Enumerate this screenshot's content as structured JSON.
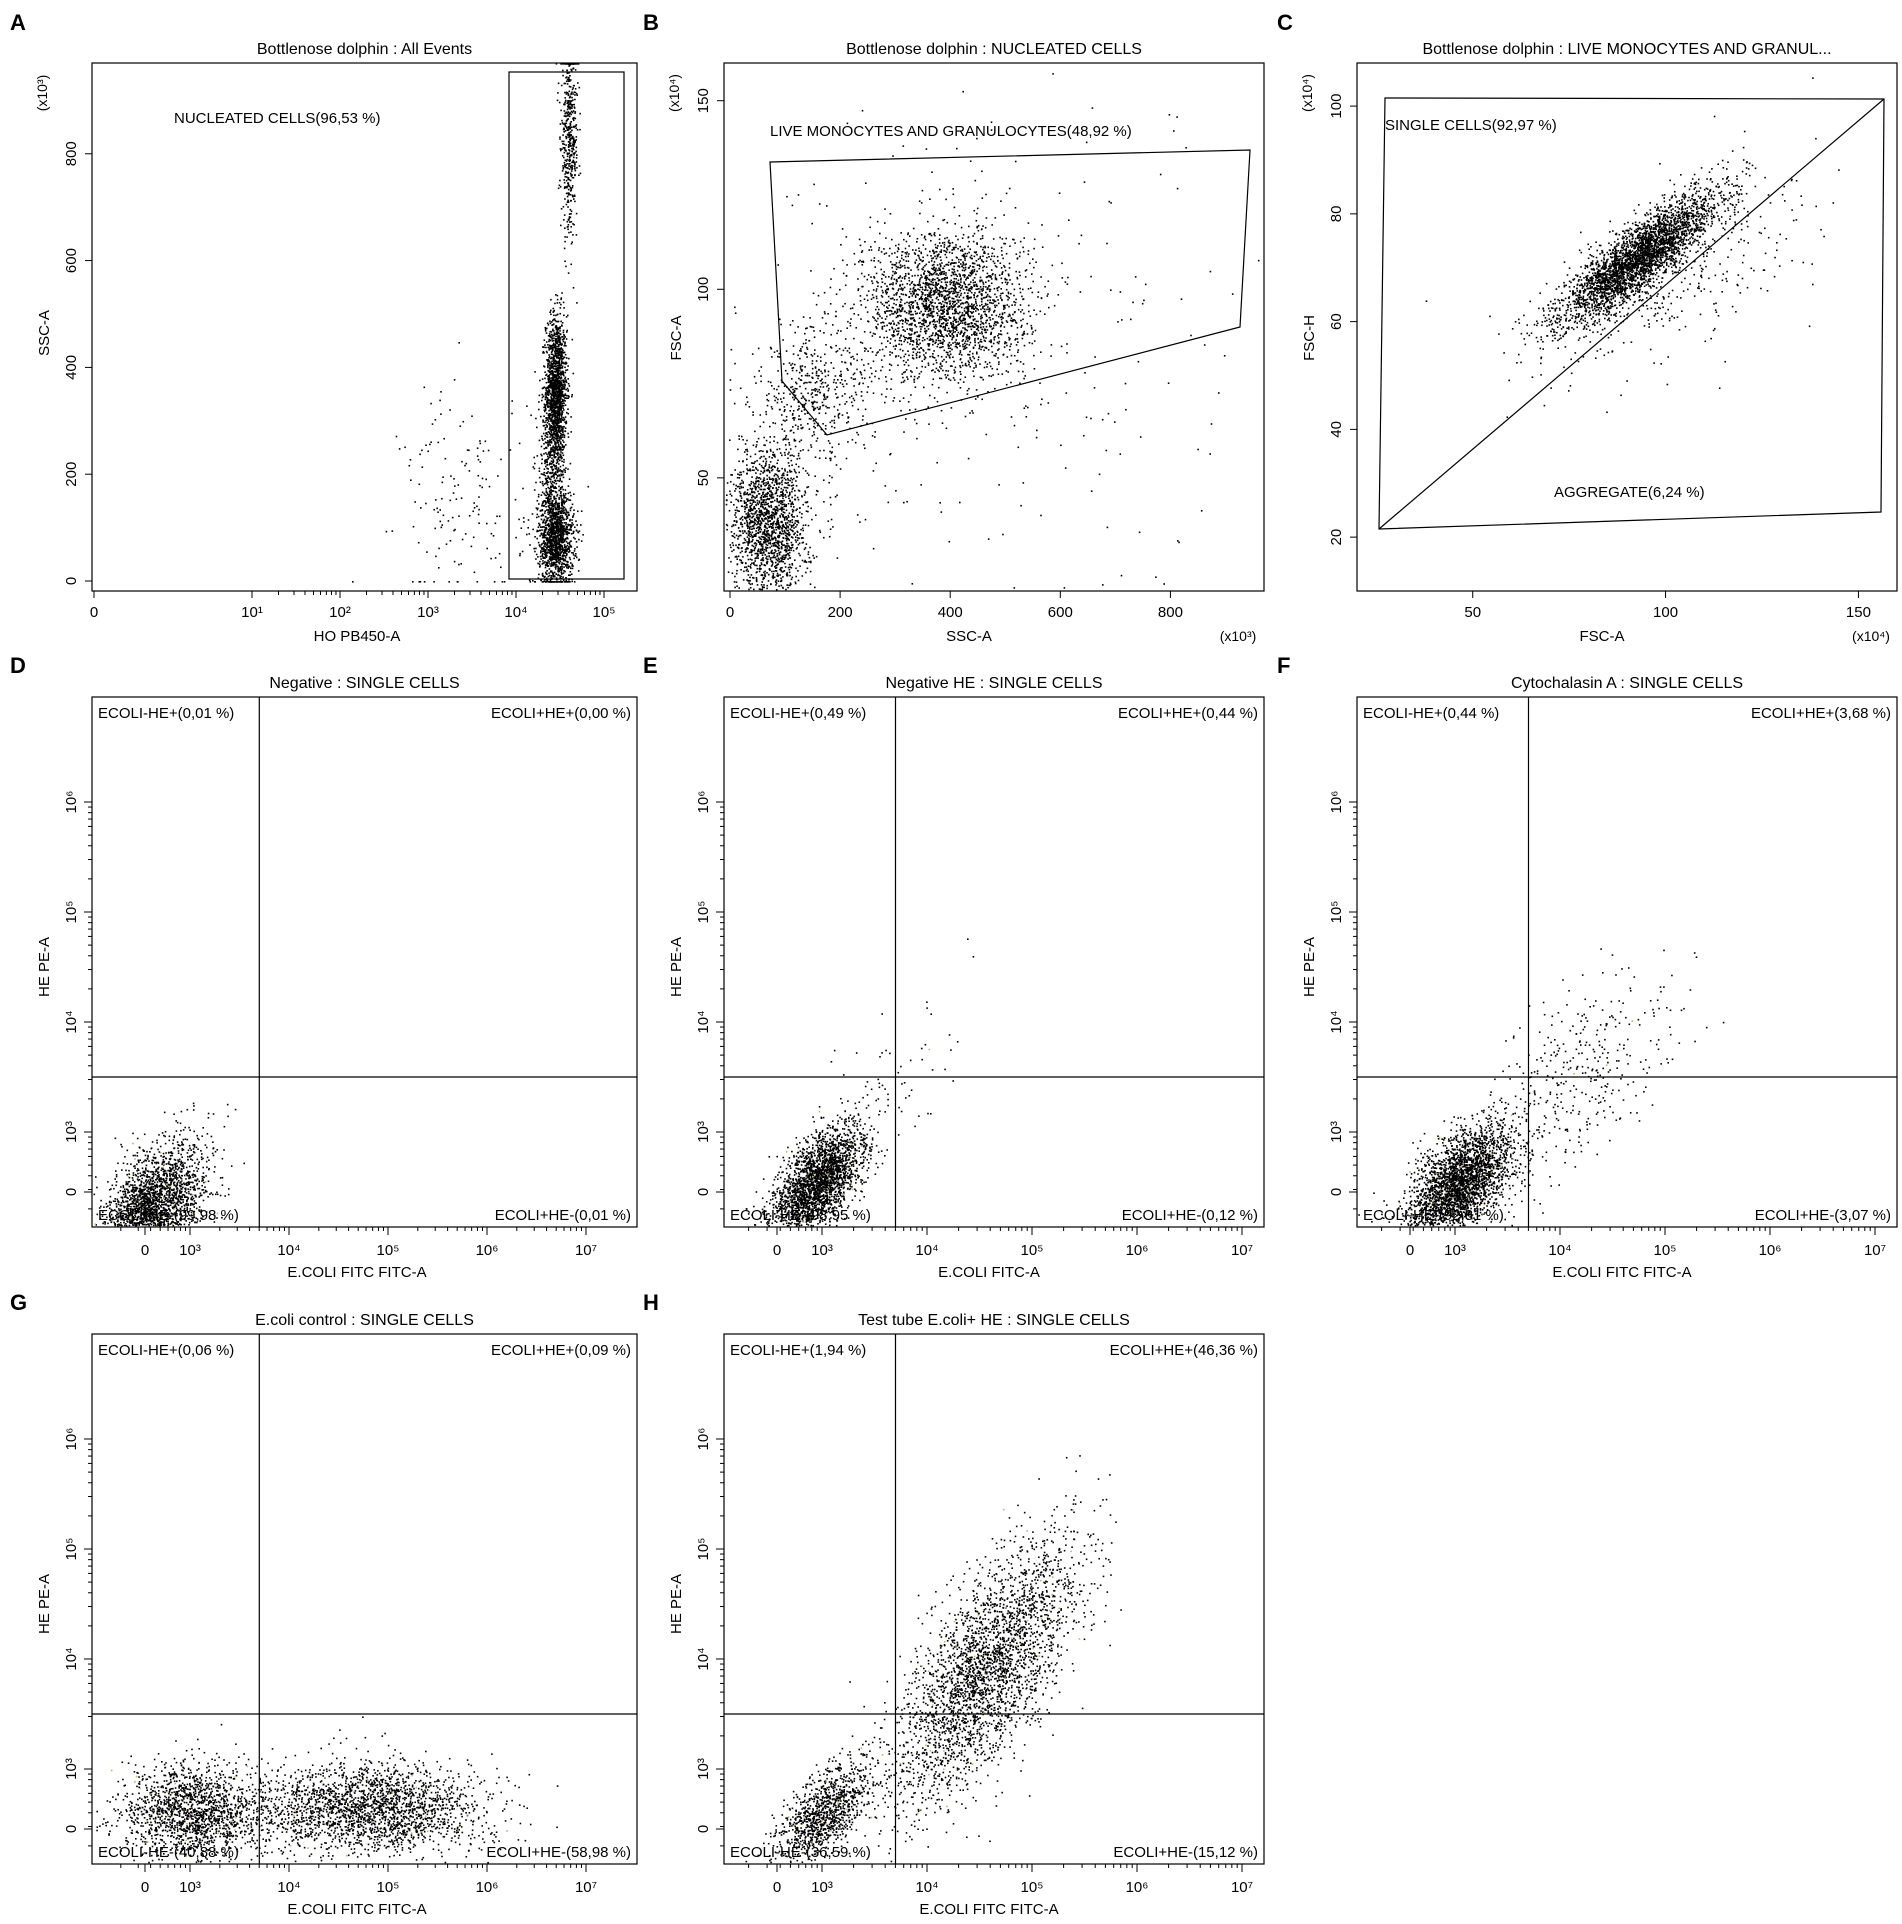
{
  "chart_data": [
    {
      "id": "A",
      "type": "scatter",
      "letter": "A",
      "title": "Bottlenose dolphin : All Events",
      "xlabel": "HO PB450-A",
      "ylabel": "SSC-A",
      "yscale_label": "(x10³)",
      "x_ticks": [
        "0",
        "10¹",
        "10²",
        "10³",
        "10⁴",
        "10⁵"
      ],
      "y_ticks": [
        "0",
        "200",
        "400",
        "600",
        "800"
      ],
      "y_tick_values": [
        0,
        200,
        400,
        600,
        800
      ],
      "ylim": [
        0,
        970
      ],
      "gates": [
        {
          "name": "NUCLEATED CELLS",
          "label": "NUCLEATED CELLS(96,53 %)",
          "percent": 96.53
        }
      ],
      "clusters": [
        {
          "x_log": 4.45,
          "y": 360,
          "sx_log": 0.06,
          "sy": 70,
          "n": 1400
        },
        {
          "x_log": 4.45,
          "y": 80,
          "sx_log": 0.1,
          "sy": 45,
          "n": 1200
        },
        {
          "x_log": 4.6,
          "y": 830,
          "sx_log": 0.05,
          "sy": 90,
          "n": 500
        },
        {
          "x_log": 4.4,
          "y": 200,
          "sx_log": 0.08,
          "sy": 90,
          "n": 500
        },
        {
          "x_log": 3.4,
          "y": 150,
          "sx_log": 0.35,
          "sy": 110,
          "n": 150
        }
      ]
    },
    {
      "id": "B",
      "type": "scatter",
      "letter": "B",
      "title": "Bottlenose dolphin : NUCLEATED CELLS",
      "xlabel": "SSC-A",
      "ylabel": "FSC-A",
      "xscale_label": "(x10³)",
      "yscale_label": "(x10⁴)",
      "x_ticks": [
        "0",
        "200",
        "400",
        "600",
        "800"
      ],
      "x_tick_values": [
        0,
        200,
        400,
        600,
        800
      ],
      "y_ticks": [
        "50",
        "100",
        "150"
      ],
      "y_tick_values": [
        50,
        100,
        150
      ],
      "xlim": [
        0,
        970
      ],
      "ylim": [
        20,
        160
      ],
      "gates": [
        {
          "name": "LIVE MONOCYTES AND GRANULOCYTES",
          "label": "LIVE MONOCYTES AND GRANULOCYTES(48,92 %)",
          "percent": 48.92
        }
      ],
      "clusters": [
        {
          "x": 390,
          "y": 96,
          "sx": 75,
          "sy": 10,
          "n": 2400
        },
        {
          "x": 70,
          "y": 38,
          "sx": 35,
          "sy": 10,
          "n": 1700
        },
        {
          "x": 150,
          "y": 72,
          "sx": 55,
          "sy": 9,
          "n": 500
        },
        {
          "x": 500,
          "y": 80,
          "sx": 260,
          "sy": 35,
          "n": 250
        }
      ]
    },
    {
      "id": "C",
      "type": "scatter",
      "letter": "C",
      "title": "Bottlenose dolphin : LIVE MONOCYTES AND GRANUL...",
      "xlabel": "FSC-A",
      "ylabel": "FSC-H",
      "xscale_label": "(x10⁴)",
      "yscale_label": "(x10⁴)",
      "x_ticks": [
        "50",
        "100",
        "150"
      ],
      "x_tick_values": [
        50,
        100,
        150
      ],
      "y_ticks": [
        "20",
        "40",
        "60",
        "80",
        "100"
      ],
      "y_tick_values": [
        20,
        40,
        60,
        80,
        100
      ],
      "xlim": [
        20,
        160
      ],
      "ylim": [
        10,
        108
      ],
      "gates": [
        {
          "name": "SINGLE CELLS",
          "label": "SINGLE CELLS(92,97 %)",
          "percent": 92.97
        },
        {
          "name": "AGGREGATE",
          "label": "AGGREGATE(6,24 %)",
          "percent": 6.24
        }
      ],
      "clusters": [
        {
          "x": 93,
          "y": 72,
          "sx": 10,
          "sy": 6,
          "n": 3200,
          "corr": 0.85
        },
        {
          "x": 100,
          "y": 68,
          "sx": 18,
          "sy": 10,
          "n": 400,
          "corr": 0.6
        }
      ]
    },
    {
      "id": "D",
      "type": "scatter",
      "letter": "D",
      "title": "Negative : SINGLE CELLS",
      "xlabel": "E.COLI FITC FITC-A",
      "ylabel": "HE PE-A",
      "x_ticks": [
        "0",
        "10³",
        "10⁴",
        "10⁵",
        "10⁶",
        "10⁷"
      ],
      "y_ticks": [
        "0",
        "10³",
        "10⁴",
        "10⁵",
        "10⁶"
      ],
      "quadrants": [
        {
          "label": "ECOLI-HE+(0,01 %)",
          "percent": 0.01
        },
        {
          "label": "ECOLI+HE+(0,00 %)",
          "percent": 0.0
        },
        {
          "label": "ECOLI-HE-(99,98 %)",
          "percent": 99.98
        },
        {
          "label": "ECOLI+HE-(0,01 %)",
          "percent": 0.01
        }
      ],
      "clusters": [
        {
          "x": 2.6,
          "y": 2.3,
          "sx": 0.28,
          "sy": 0.3,
          "n": 2600,
          "corr": 0.5
        }
      ]
    },
    {
      "id": "E",
      "type": "scatter",
      "letter": "E",
      "title": "Negative HE : SINGLE CELLS",
      "xlabel": "E.COLI  FITC-A",
      "ylabel": "HE PE-A",
      "x_ticks": [
        "0",
        "10³",
        "10⁴",
        "10⁵",
        "10⁶",
        "10⁷"
      ],
      "y_ticks": [
        "0",
        "10³",
        "10⁴",
        "10⁵",
        "10⁶"
      ],
      "quadrants": [
        {
          "label": "ECOLI-HE+(0,49 %)",
          "percent": 0.49
        },
        {
          "label": "ECOLI+HE+(0,44 %)",
          "percent": 0.44
        },
        {
          "label": "ECOLI-HE-(98,95 %)",
          "percent": 98.95
        },
        {
          "label": "ECOLI+HE-(0,12 %)",
          "percent": 0.12
        }
      ],
      "clusters": [
        {
          "x": 2.95,
          "y": 2.55,
          "sx": 0.22,
          "sy": 0.25,
          "n": 2500,
          "corr": 0.6
        },
        {
          "x": 3.6,
          "y": 3.3,
          "sx": 0.35,
          "sy": 0.45,
          "n": 70,
          "corr": 0.6
        }
      ]
    },
    {
      "id": "F",
      "type": "scatter",
      "letter": "F",
      "title": "Cytochalasin A : SINGLE CELLS",
      "xlabel": "E.COLI FITC FITC-A",
      "ylabel": "HE PE-A",
      "x_ticks": [
        "0",
        "10³",
        "10⁴",
        "10⁵",
        "10⁶",
        "10⁷"
      ],
      "y_ticks": [
        "0",
        "10³",
        "10⁴",
        "10⁵",
        "10⁶"
      ],
      "quadrants": [
        {
          "label": "ECOLI-HE+(0,44 %)",
          "percent": 0.44
        },
        {
          "label": "ECOLI+HE+(3,68 %)",
          "percent": 3.68
        },
        {
          "label": "ECOLI-HE-(92,81 %)",
          "percent": 92.81
        },
        {
          "label": "ECOLI+HE-(3,07 %)",
          "percent": 3.07
        }
      ],
      "clusters": [
        {
          "x": 3.05,
          "y": 2.55,
          "sx": 0.25,
          "sy": 0.25,
          "n": 2800,
          "corr": 0.55
        },
        {
          "x": 4.2,
          "y": 3.5,
          "sx": 0.45,
          "sy": 0.5,
          "n": 380,
          "corr": 0.5
        }
      ]
    },
    {
      "id": "G",
      "type": "scatter",
      "letter": "G",
      "title": "E.coli control : SINGLE CELLS",
      "xlabel": "E.COLI FITC FITC-A",
      "ylabel": "HE PE-A",
      "x_ticks": [
        "0",
        "10³",
        "10⁴",
        "10⁵",
        "10⁶",
        "10⁷"
      ],
      "y_ticks": [
        "0",
        "10³",
        "10⁴",
        "10⁵",
        "10⁶"
      ],
      "quadrants": [
        {
          "label": "ECOLI-HE+(0,06 %)",
          "percent": 0.06
        },
        {
          "label": "ECOLI+HE+(0,09 %)",
          "percent": 0.09
        },
        {
          "label": "ECOLI-HE-(40,88 %)",
          "percent": 40.88
        },
        {
          "label": "ECOLI+HE-(58,98 %)",
          "percent": 58.98
        }
      ],
      "clusters": [
        {
          "x": 3.0,
          "y": 2.6,
          "sx": 0.35,
          "sy": 0.22,
          "n": 1600,
          "corr": 0.0
        },
        {
          "x": 4.75,
          "y": 2.65,
          "sx": 0.6,
          "sy": 0.2,
          "n": 2300,
          "corr": 0.0
        }
      ]
    },
    {
      "id": "H",
      "type": "scatter",
      "letter": "H",
      "title": "Test tube E.coli+ HE : SINGLE CELLS",
      "xlabel": "E.COLI FITC FITC-A",
      "ylabel": "HE PE-A",
      "x_ticks": [
        "0",
        "10³",
        "10⁴",
        "10⁵",
        "10⁶",
        "10⁷"
      ],
      "y_ticks": [
        "0",
        "10³",
        "10⁴",
        "10⁵",
        "10⁶"
      ],
      "quadrants": [
        {
          "label": "ECOLI-HE+(1,94 %)",
          "percent": 1.94
        },
        {
          "label": "ECOLI+HE+(46,36 %)",
          "percent": 46.36
        },
        {
          "label": "ECOLI-HE-(36,59 %)",
          "percent": 36.59
        },
        {
          "label": "ECOLI+HE-(15,12 %)",
          "percent": 15.12
        }
      ],
      "clusters": [
        {
          "x": 3.0,
          "y": 2.6,
          "sx": 0.22,
          "sy": 0.22,
          "n": 1100,
          "corr": 0.6
        },
        {
          "x": 4.55,
          "y": 3.9,
          "sx": 0.45,
          "sy": 0.6,
          "n": 3000,
          "corr": 0.7
        }
      ]
    }
  ]
}
